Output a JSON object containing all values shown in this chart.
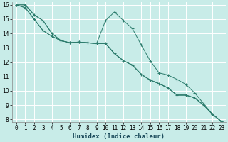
{
  "xlabel": "Humidex (Indice chaleur)",
  "ylim": [
    7.8,
    16.2
  ],
  "xlim": [
    -0.5,
    23.5
  ],
  "yticks": [
    8,
    9,
    10,
    11,
    12,
    13,
    14,
    15,
    16
  ],
  "bg_color": "#c8ece8",
  "grid_color": "#ffffff",
  "line_color": "#2e7d6e",
  "lines": [
    {
      "x": [
        0,
        1,
        2,
        3,
        4,
        5,
        6,
        7,
        8,
        9,
        10,
        11,
        12,
        13,
        14,
        15,
        16,
        17,
        18,
        19,
        20,
        21,
        22,
        23
      ],
      "y": [
        16.0,
        16.0,
        15.3,
        14.9,
        14.0,
        13.5,
        13.35,
        13.4,
        13.35,
        13.3,
        14.9,
        15.5,
        14.9,
        14.35,
        13.2,
        12.1,
        11.25,
        11.1,
        10.8,
        10.45,
        9.85,
        9.1,
        8.35,
        7.85
      ],
      "marker": true
    },
    {
      "x": [
        0,
        1,
        2,
        3,
        4,
        5,
        6,
        7,
        8,
        9,
        10,
        11,
        12,
        13,
        14,
        15,
        16,
        17,
        18,
        19,
        20,
        21,
        22,
        23
      ],
      "y": [
        16.0,
        15.8,
        15.0,
        14.2,
        13.8,
        13.5,
        13.35,
        13.4,
        13.35,
        13.3,
        13.3,
        12.6,
        12.1,
        11.8,
        11.15,
        10.75,
        10.5,
        10.2,
        9.7,
        9.7,
        9.5,
        9.0,
        8.35,
        7.85
      ],
      "marker": true
    },
    {
      "x": [
        0,
        1,
        2,
        3,
        4,
        5,
        6,
        7,
        8,
        9,
        10,
        11,
        12,
        13,
        14,
        15,
        16,
        17,
        18,
        19,
        20,
        21,
        22,
        23
      ],
      "y": [
        16.0,
        15.8,
        15.0,
        14.2,
        13.8,
        13.5,
        13.35,
        13.4,
        13.35,
        13.3,
        13.3,
        12.6,
        12.1,
        11.8,
        11.15,
        10.75,
        10.5,
        10.2,
        9.7,
        9.7,
        9.5,
        9.0,
        8.35,
        7.85
      ],
      "marker": false
    },
    {
      "x": [
        0,
        1,
        2,
        3,
        4,
        5,
        6,
        7,
        8,
        9,
        10,
        11,
        12,
        13,
        14,
        15,
        16,
        17,
        18,
        19,
        20,
        21,
        22,
        23
      ],
      "y": [
        16.0,
        16.0,
        15.3,
        14.9,
        14.0,
        13.5,
        13.35,
        13.4,
        13.35,
        13.3,
        13.3,
        12.6,
        12.1,
        11.8,
        11.15,
        10.75,
        10.5,
        10.2,
        9.7,
        9.7,
        9.5,
        9.0,
        8.35,
        7.85
      ],
      "marker": false
    }
  ],
  "line_width": 0.7,
  "marker_style": "+",
  "marker_size": 3.5,
  "tick_fontsize": 5.5,
  "xlabel_fontsize": 6.5,
  "xlabel_color": "#1a4a5a",
  "xlabel_bold": true
}
